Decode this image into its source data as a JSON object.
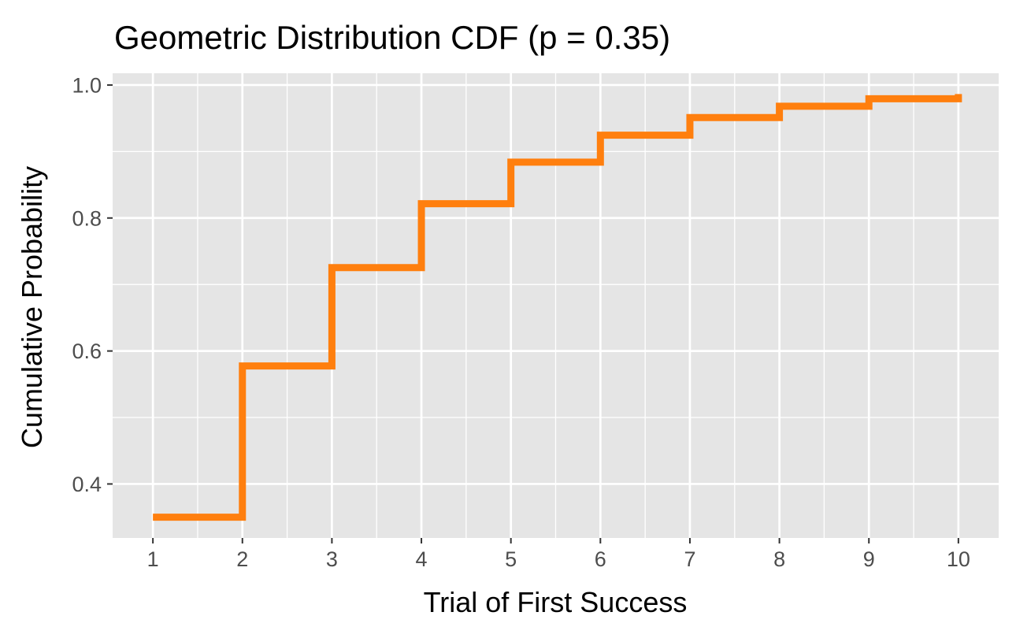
{
  "chart_data": {
    "type": "step",
    "title": "Geometric Distribution CDF (p = 0.35)",
    "xlabel": "Trial of First Success",
    "ylabel": "Cumulative Probability",
    "x": [
      1,
      2,
      3,
      4,
      5,
      6,
      7,
      8,
      9,
      10
    ],
    "y": [
      0.35,
      0.5775,
      0.7254,
      0.8215,
      0.884,
      0.9246,
      0.951,
      0.9681,
      0.9793,
      0.9865
    ],
    "xlim": [
      0.55,
      10.45
    ],
    "ylim": [
      0.3188,
      1.0177
    ],
    "x_ticks": [
      1,
      2,
      3,
      4,
      5,
      6,
      7,
      8,
      9,
      10
    ],
    "y_ticks": [
      0.4,
      0.6,
      0.8,
      1.0
    ],
    "y_tick_labels": [
      "0.4",
      "0.6",
      "0.8",
      "1.0"
    ],
    "grid": true,
    "line_color": "#ff7f0e",
    "panel_color": "#e5e5e5",
    "grid_color": "#ffffff"
  }
}
